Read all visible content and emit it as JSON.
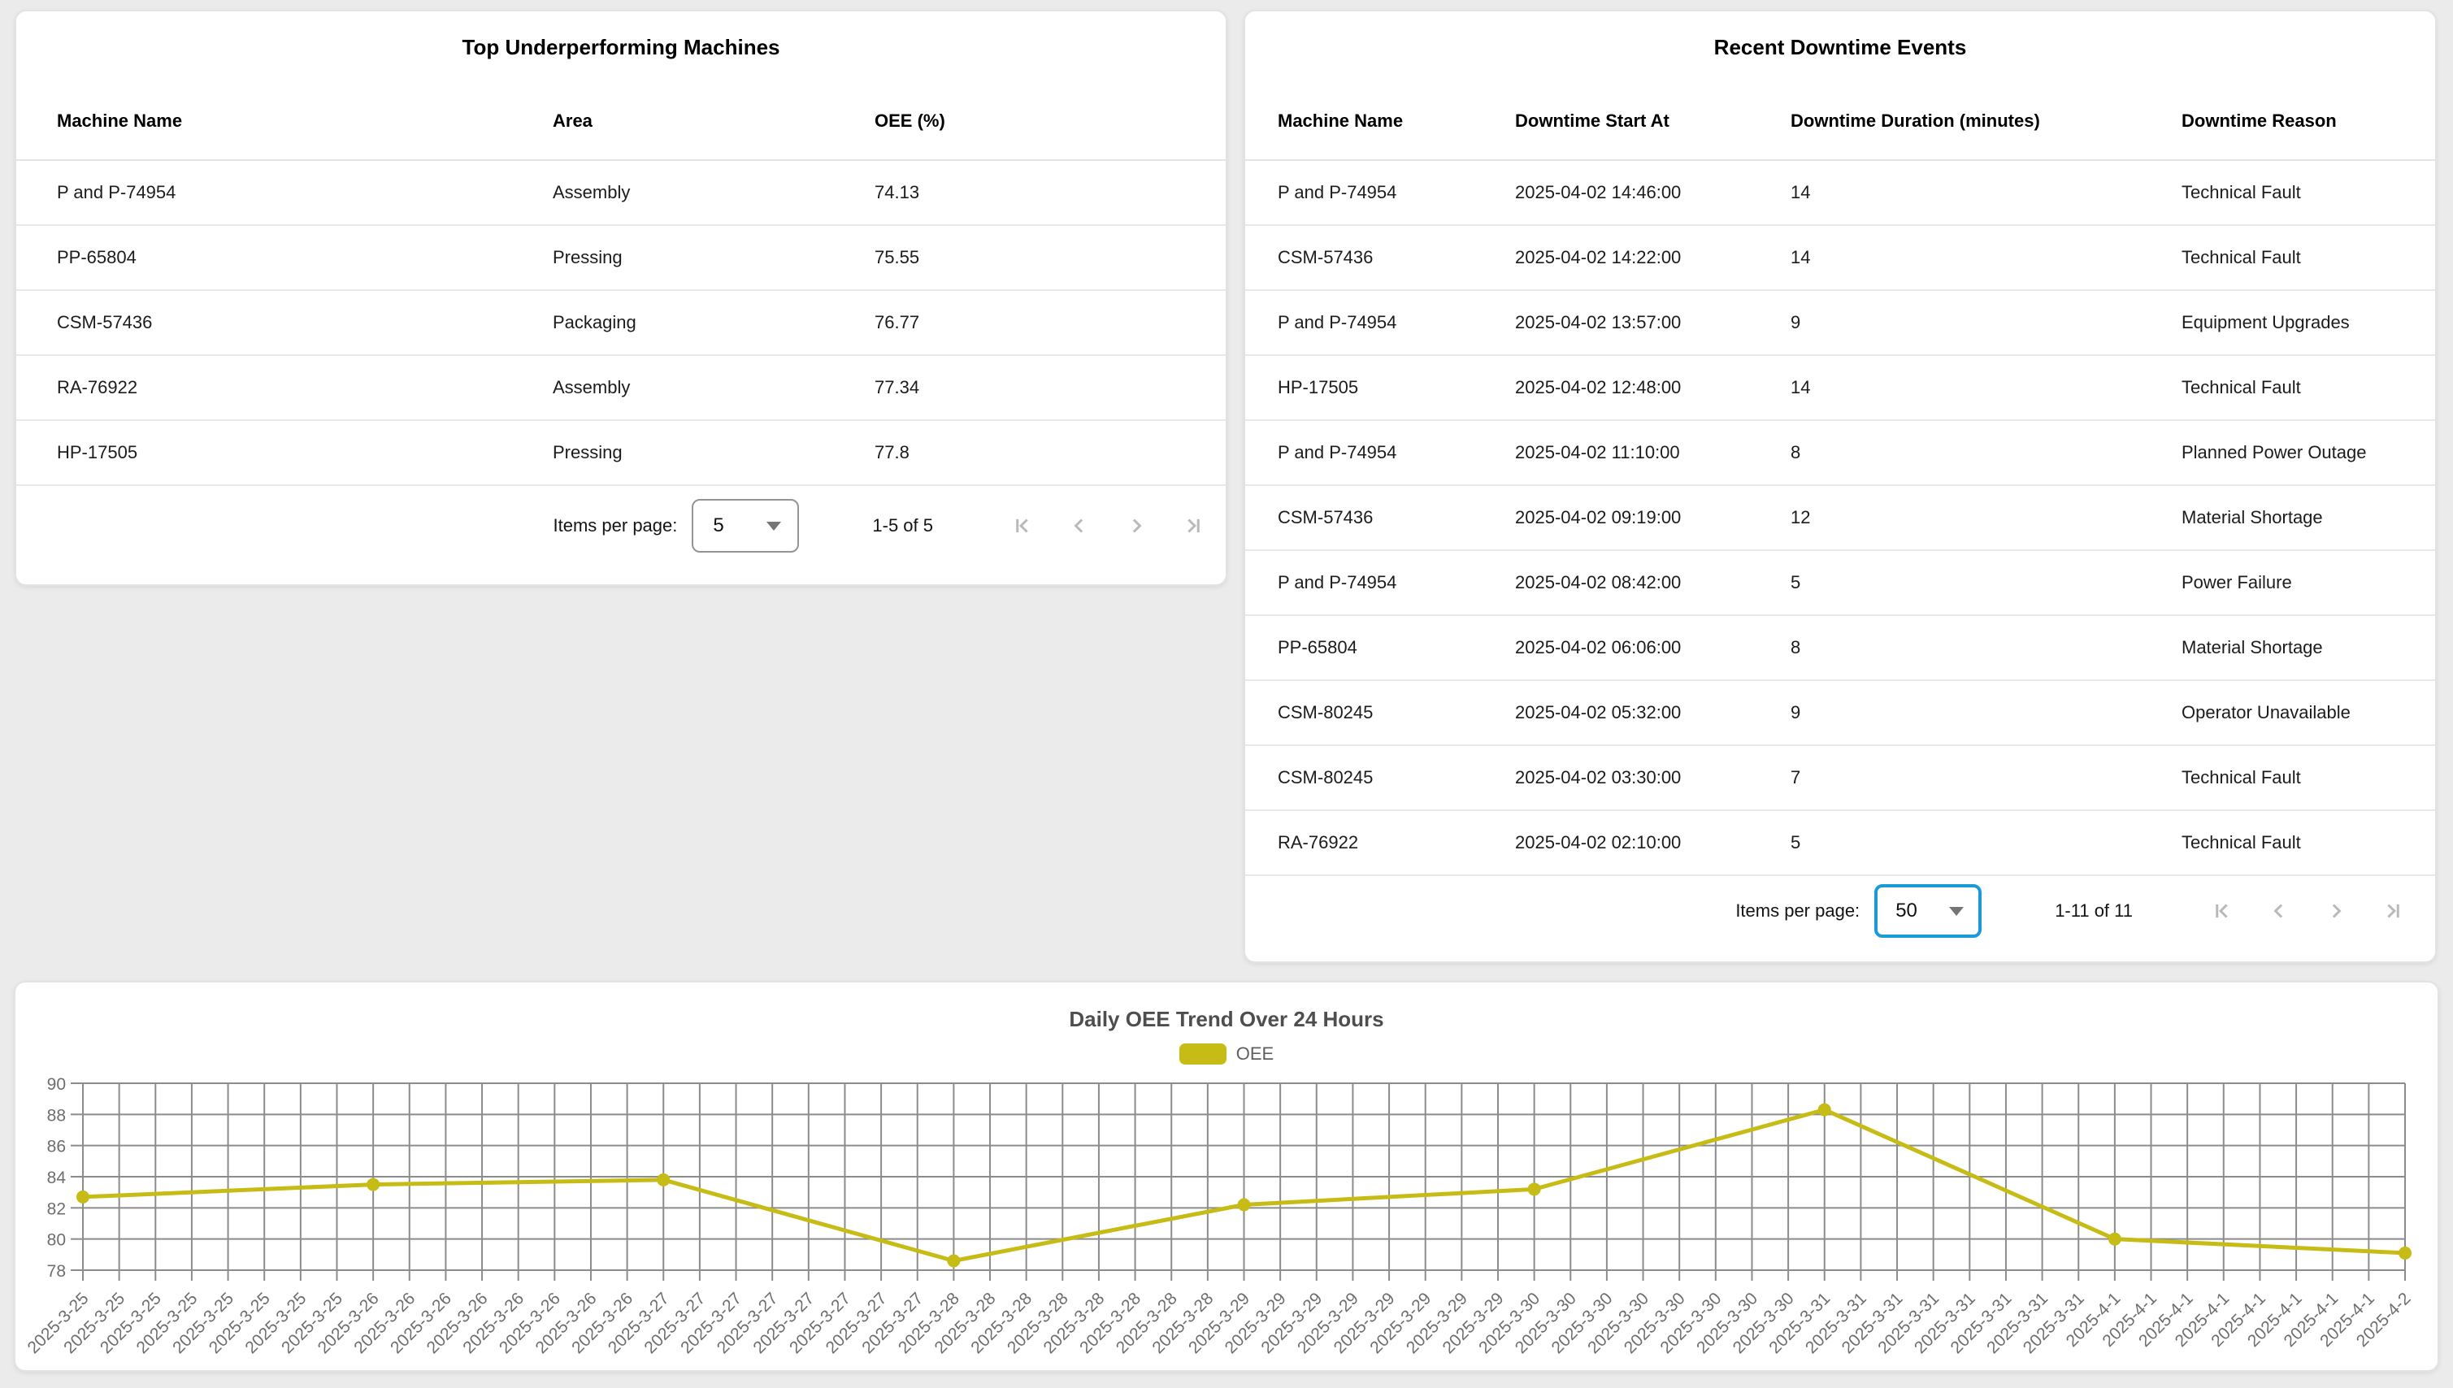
{
  "underperforming_card": {
    "title": "Top Underperforming Machines",
    "columns": [
      "Machine Name",
      "Area",
      "OEE (%)"
    ],
    "rows": [
      [
        "P and P-74954",
        "Assembly",
        "74.13"
      ],
      [
        "PP-65804",
        "Pressing",
        "75.55"
      ],
      [
        "CSM-57436",
        "Packaging",
        "76.77"
      ],
      [
        "RA-76922",
        "Assembly",
        "77.34"
      ],
      [
        "HP-17505",
        "Pressing",
        "77.8"
      ]
    ],
    "paginator": {
      "items_per_page_label": "Items per page:",
      "page_size": "5",
      "range_label": "1-5 of 5",
      "focused": false
    }
  },
  "downtime_card": {
    "title": "Recent Downtime Events",
    "columns": [
      "Machine Name",
      "Downtime Start At",
      "Downtime Duration (minutes)",
      "Downtime Reason"
    ],
    "rows": [
      [
        "P and P-74954",
        "2025-04-02 14:46:00",
        "14",
        "Technical Fault"
      ],
      [
        "CSM-57436",
        "2025-04-02 14:22:00",
        "14",
        "Technical Fault"
      ],
      [
        "P and P-74954",
        "2025-04-02 13:57:00",
        "9",
        "Equipment Upgrades"
      ],
      [
        "HP-17505",
        "2025-04-02 12:48:00",
        "14",
        "Technical Fault"
      ],
      [
        "P and P-74954",
        "2025-04-02 11:10:00",
        "8",
        "Planned Power Outage"
      ],
      [
        "CSM-57436",
        "2025-04-02 09:19:00",
        "12",
        "Material Shortage"
      ],
      [
        "P and P-74954",
        "2025-04-02 08:42:00",
        "5",
        "Power Failure"
      ],
      [
        "PP-65804",
        "2025-04-02 06:06:00",
        "8",
        "Material Shortage"
      ],
      [
        "CSM-80245",
        "2025-04-02 05:32:00",
        "9",
        "Operator Unavailable"
      ],
      [
        "CSM-80245",
        "2025-04-02 03:30:00",
        "7",
        "Technical Fault"
      ],
      [
        "RA-76922",
        "2025-04-02 02:10:00",
        "5",
        "Technical Fault"
      ]
    ],
    "paginator": {
      "items_per_page_label": "Items per page:",
      "page_size": "50",
      "range_label": "1-11 of 11",
      "focused": true
    }
  },
  "chart_data": {
    "type": "line",
    "title": "Daily OEE Trend Over 24 Hours",
    "legend": [
      {
        "label": "OEE",
        "color": "#c6bc15"
      }
    ],
    "legend_position": "top",
    "x_dates": [
      "2025-3-25",
      "2025-3-26",
      "2025-3-27",
      "2025-3-28",
      "2025-3-29",
      "2025-3-30",
      "2025-3-31",
      "2025-4-1",
      "2025-4-2"
    ],
    "ticks_per_date": 8,
    "series": [
      {
        "name": "OEE",
        "color": "#c6bc15",
        "values": [
          82.7,
          83.5,
          83.8,
          78.6,
          82.2,
          83.2,
          88.3,
          80.0,
          79.1
        ]
      }
    ],
    "xlabel": "",
    "ylabel": "",
    "ylim": [
      78,
      90
    ],
    "yticks": [
      78,
      80,
      82,
      84,
      86,
      88,
      90
    ],
    "grid": true,
    "colors": {
      "gridline": "#8c8c8c",
      "axis_label": "#6e6e6e",
      "title": "#4e4e4e"
    }
  }
}
